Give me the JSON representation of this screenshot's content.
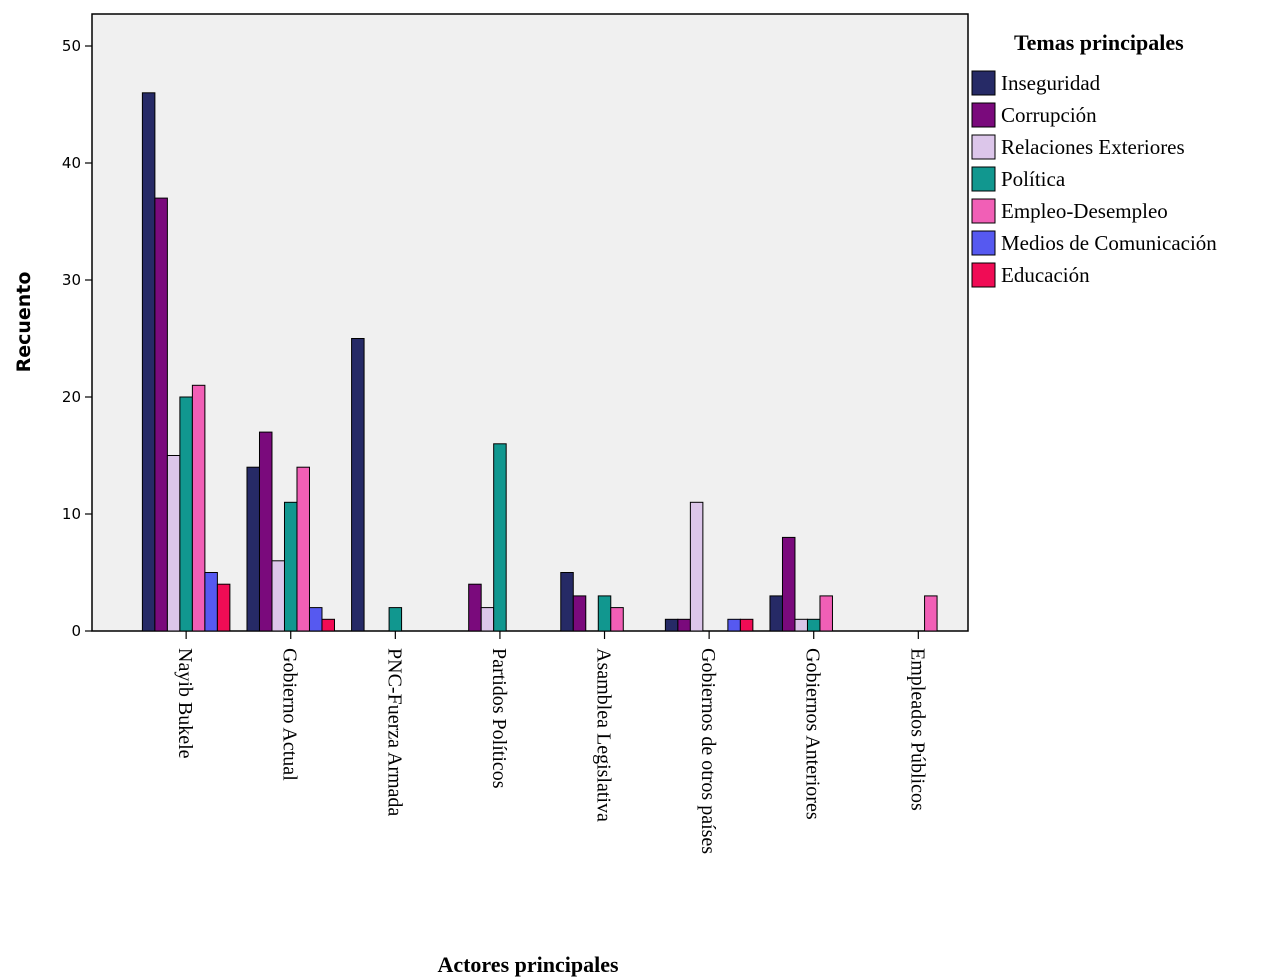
{
  "chart_data": {
    "type": "bar",
    "xlabel": "Actores principales",
    "ylabel": "Recuento",
    "ylim": [
      0,
      52
    ],
    "yticks": [
      0,
      10,
      20,
      30,
      40,
      50
    ],
    "grid": false,
    "legend_title": "Temas principales",
    "legend_position": "right",
    "categories": [
      "Nayib Bukele",
      "Gobierno Actual",
      "PNC-Fuerza Armada",
      "Partidos Políticos",
      "Asamblea Legislativa",
      "Gobiernos de otros países",
      "Gobiernos Anteriores",
      "Empleados Públicos"
    ],
    "series": [
      {
        "name": "Inseguridad",
        "color": "#262a66",
        "values": [
          46,
          14,
          25,
          0,
          5,
          1,
          3,
          0
        ]
      },
      {
        "name": "Corrupción",
        "color": "#7a0a7c",
        "values": [
          37,
          17,
          0,
          4,
          3,
          1,
          8,
          0
        ]
      },
      {
        "name": "Relaciones Exteriores",
        "color": "#dcc6ea",
        "values": [
          15,
          6,
          0,
          2,
          0,
          11,
          1,
          0
        ]
      },
      {
        "name": "Política",
        "color": "#11978f",
        "values": [
          20,
          11,
          2,
          16,
          3,
          0,
          1,
          0
        ]
      },
      {
        "name": "Empleo-Desempleo",
        "color": "#f15fb6",
        "values": [
          21,
          14,
          0,
          0,
          2,
          0,
          3,
          3
        ]
      },
      {
        "name": "Medios de Comunicación",
        "color": "#5659f0",
        "values": [
          5,
          2,
          0,
          0,
          0,
          1,
          0,
          0
        ]
      },
      {
        "name": "Educación",
        "color": "#f00c55",
        "values": [
          4,
          1,
          0,
          0,
          0,
          1,
          0,
          0
        ]
      }
    ]
  }
}
